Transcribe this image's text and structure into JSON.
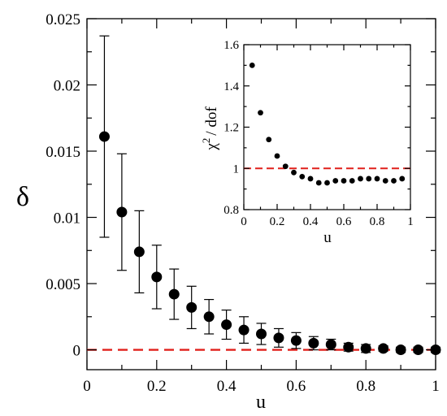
{
  "chart_data": [
    {
      "type": "scatter",
      "title": "",
      "xlabel": "u",
      "ylabel": "δ",
      "xlim": [
        0,
        1.0
      ],
      "ylim": [
        -0.0015,
        0.025
      ],
      "xticks": [
        "0",
        "0.2",
        "0.4",
        "0.6",
        "0.8",
        "1"
      ],
      "xtick_values": [
        0,
        0.2,
        0.4,
        0.6,
        0.8,
        1.0
      ],
      "yticks": [
        "0",
        "0.005",
        "0.01",
        "0.015",
        "0.02",
        "0.025"
      ],
      "ytick_values": [
        0,
        0.005,
        0.01,
        0.015,
        0.02,
        0.025
      ],
      "series": [
        {
          "x": [
            0.05,
            0.1,
            0.15,
            0.2,
            0.25,
            0.3,
            0.35,
            0.4,
            0.45,
            0.5,
            0.55,
            0.6,
            0.65,
            0.7,
            0.75,
            0.8,
            0.85,
            0.9,
            0.95,
            1.0
          ],
          "y": [
            0.0161,
            0.0104,
            0.0074,
            0.0055,
            0.0042,
            0.0032,
            0.0025,
            0.0019,
            0.0015,
            0.0012,
            0.0009,
            0.0007,
            0.0005,
            0.0004,
            0.0002,
            0.0001,
            0.0001,
            0.0,
            0.0,
            0.0
          ],
          "err": [
            0.0076,
            0.0044,
            0.0031,
            0.0024,
            0.0019,
            0.0016,
            0.0013,
            0.0011,
            0.001,
            0.0008,
            0.0007,
            0.0006,
            0.0005,
            0.0004,
            0.0003,
            0.0003,
            0.0002,
            0.0002,
            0.0002,
            0.0002
          ],
          "color": "#000000",
          "marker": "filled-circle"
        }
      ],
      "reference_lines": [
        {
          "y": 0,
          "style": "dashed",
          "color": "#e0201b"
        }
      ],
      "grid": false,
      "legend": "none"
    },
    {
      "type": "scatter",
      "title": "",
      "xlabel": "u",
      "ylabel_main": "χ",
      "ylabel_sup": "2",
      "ylabel_rest": "/ dof",
      "xlim": [
        0,
        1.0
      ],
      "ylim": [
        0.8,
        1.6
      ],
      "xticks": [
        "0",
        "0.2",
        "0.4",
        "0.6",
        "0.8",
        "1"
      ],
      "xtick_values": [
        0,
        0.2,
        0.4,
        0.6,
        0.8,
        1.0
      ],
      "yticks": [
        "0.8",
        "1",
        "1.2",
        "1.4",
        "1.6"
      ],
      "ytick_values": [
        0.8,
        1.0,
        1.2,
        1.4,
        1.6
      ],
      "series": [
        {
          "x": [
            0.05,
            0.1,
            0.15,
            0.2,
            0.25,
            0.3,
            0.35,
            0.4,
            0.45,
            0.5,
            0.55,
            0.6,
            0.65,
            0.7,
            0.75,
            0.8,
            0.85,
            0.9,
            0.95
          ],
          "y": [
            1.5,
            1.27,
            1.14,
            1.06,
            1.01,
            0.98,
            0.96,
            0.95,
            0.93,
            0.93,
            0.94,
            0.94,
            0.94,
            0.95,
            0.95,
            0.95,
            0.94,
            0.94,
            0.95
          ],
          "color": "#000000",
          "marker": "filled-circle"
        }
      ],
      "reference_lines": [
        {
          "y": 1.0,
          "style": "dashed",
          "color": "#e0201b"
        }
      ],
      "grid": false,
      "legend": "none"
    }
  ]
}
